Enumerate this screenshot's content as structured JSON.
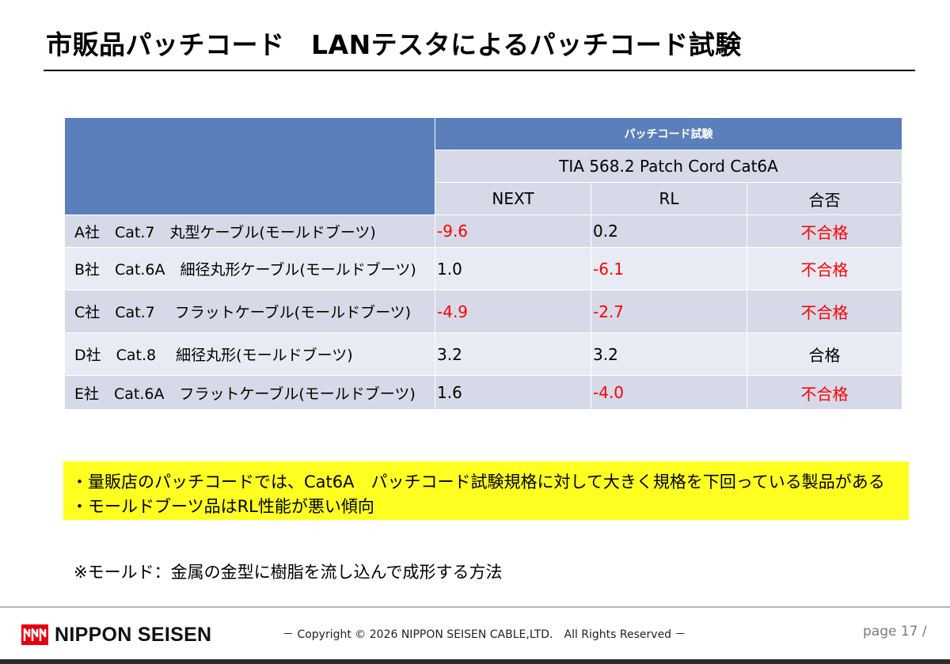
{
  "title": "市販品パッチコード　LANテスタによるパッチコード試験",
  "table": {
    "group_header": "パッチコード試験",
    "standard": "TIA 568.2 Patch Cord Cat6A",
    "columns": [
      "NEXT",
      "RL",
      "合否"
    ],
    "rows": [
      {
        "name": "A社　Cat.7　丸型ケーブル(モールドブーツ)",
        "next": "-9.6",
        "rl": "0.2",
        "result": "不合格"
      },
      {
        "name": "B社　Cat.6A　細径丸形ケーブル(モールドブーツ)",
        "next": "1.0",
        "rl": "-6.1",
        "result": "不合格"
      },
      {
        "name": "C社　Cat.7　 フラットケーブル(モールドブーツ)",
        "next": "-4.9",
        "rl": "-2.7",
        "result": "不合格"
      },
      {
        "name": "D社　Cat.8　 細径丸形(モールドブーツ)",
        "next": "3.2",
        "rl": "3.2",
        "result": "合格"
      },
      {
        "name": "E社　Cat.6A　フラットケーブル(モールドブーツ)",
        "next": "1.6",
        "rl": "-4.0",
        "result": "不合格"
      }
    ]
  },
  "notes": [
    "・量販店のパッチコードでは、Cat6A　パッチコード試験規格に対して大きく規格を下回っている製品がある",
    "・モールドブーツ品はRL性能が悪い傾向"
  ],
  "footnote": "※モールド：金属の金型に樹脂を流し込んで成形する方法",
  "footer": {
    "logo_text": "NIPPON SEISEN",
    "copyright": "－ Copyright © 2026 NIPPON SEISEN CABLE,LTD.　All Rights Reserved －",
    "page": "page 17 /"
  },
  "colors": {
    "header_blue": "#5b7fba",
    "row_dark": "#d5d9e8",
    "row_light": "#e9ebf4",
    "fail_red": "#ff0000",
    "note_yellow": "#ffff22"
  }
}
